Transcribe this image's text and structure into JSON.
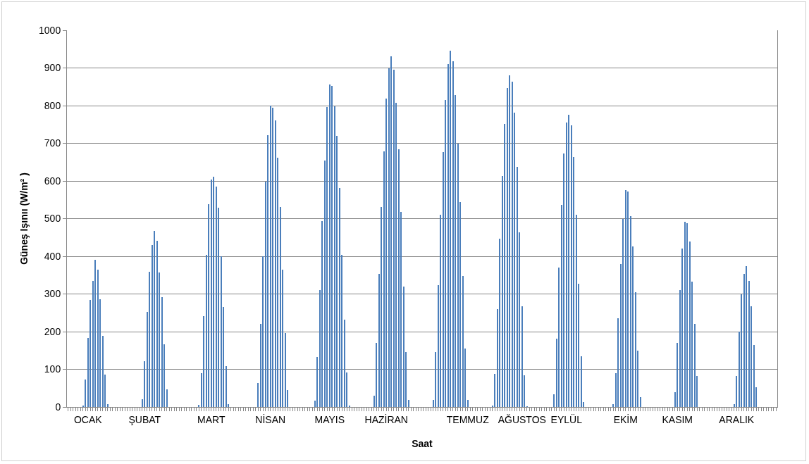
{
  "chart_data": {
    "type": "bar",
    "xlabel": "Saat",
    "ylabel": "Güneş Işınıı (W/m² )",
    "categories": [
      null,
      null,
      null,
      null,
      null,
      null,
      null,
      null,
      "OCAK",
      null,
      null,
      null,
      null,
      null,
      null,
      null,
      null,
      null,
      null,
      null,
      null,
      null,
      null,
      null,
      null,
      null,
      null,
      null,
      null,
      null,
      null,
      "ŞUBAT",
      null,
      null,
      null,
      null,
      null,
      null,
      null,
      null,
      null,
      null,
      null,
      null,
      null,
      null,
      null,
      null,
      null,
      null,
      null,
      null,
      null,
      null,
      null,
      null,
      null,
      null,
      "MART",
      null,
      null,
      null,
      null,
      null,
      null,
      null,
      null,
      null,
      null,
      null,
      null,
      null,
      null,
      null,
      null,
      null,
      null,
      null,
      null,
      null,
      null,
      null,
      "NİSAN",
      null,
      null,
      null,
      null,
      null,
      null,
      null,
      null,
      null,
      null,
      null,
      null,
      null,
      null,
      null,
      null,
      null,
      null,
      null,
      null,
      null,
      null,
      null,
      "MAYIS",
      null,
      null,
      null,
      null,
      null,
      null,
      null,
      null,
      null,
      null,
      null,
      null,
      null,
      null,
      null,
      null,
      null,
      null,
      null,
      null,
      null,
      null,
      "HAZİRAN",
      null,
      null,
      null,
      null,
      null,
      null,
      null,
      null,
      null,
      null,
      null,
      null,
      null,
      null,
      null,
      null,
      null,
      null,
      null,
      null,
      null,
      null,
      null,
      null,
      null,
      null,
      null,
      null,
      null,
      null,
      null,
      null,
      "TEMMUZ",
      null,
      null,
      null,
      null,
      null,
      null,
      null,
      null,
      null,
      null,
      null,
      null,
      null,
      null,
      null,
      null,
      null,
      null,
      null,
      null,
      null,
      "AĞUSTOS",
      null,
      null,
      null,
      null,
      null,
      null,
      null,
      null,
      null,
      null,
      null,
      null,
      null,
      null,
      null,
      null,
      null,
      "EYLÜL",
      null,
      null,
      null,
      null,
      null,
      null,
      null,
      null,
      null,
      null,
      null,
      null,
      null,
      null,
      null,
      null,
      null,
      null,
      null,
      null,
      null,
      null,
      null,
      "EKİM",
      null,
      null,
      null,
      null,
      null,
      null,
      null,
      null,
      null,
      null,
      null,
      null,
      null,
      null,
      null,
      null,
      null,
      null,
      null,
      null,
      "KASIM",
      null,
      null,
      null,
      null,
      null,
      null,
      null,
      null,
      null,
      null,
      null,
      null,
      null,
      null,
      null,
      null,
      null,
      null,
      null,
      null,
      null,
      null,
      null,
      "ARALIK",
      null,
      null,
      null,
      null,
      null,
      null,
      null,
      null,
      null,
      null,
      null,
      null,
      null,
      null,
      null,
      null
    ],
    "values": [
      0,
      0,
      0,
      0,
      0,
      0,
      4,
      72,
      183,
      284,
      334,
      390,
      364,
      286,
      189,
      86,
      8,
      0,
      0,
      0,
      0,
      0,
      0,
      0,
      0,
      0,
      0,
      0,
      0,
      0,
      21,
      121,
      252,
      359,
      430,
      467,
      442,
      357,
      291,
      166,
      47,
      0,
      0,
      0,
      0,
      0,
      0,
      0,
      0,
      0,
      0,
      0,
      0,
      6,
      90,
      242,
      403,
      539,
      603,
      612,
      585,
      529,
      400,
      265,
      109,
      8,
      0,
      0,
      0,
      0,
      0,
      0,
      0,
      0,
      0,
      0,
      0,
      63,
      221,
      400,
      598,
      721,
      800,
      794,
      761,
      662,
      530,
      365,
      197,
      44,
      0,
      0,
      0,
      0,
      0,
      0,
      0,
      0,
      0,
      0,
      17,
      133,
      310,
      494,
      655,
      797,
      857,
      852,
      798,
      719,
      581,
      403,
      232,
      91,
      4,
      0,
      0,
      0,
      0,
      0,
      0,
      0,
      0,
      0,
      30,
      170,
      353,
      530,
      679,
      819,
      900,
      931,
      896,
      807,
      684,
      518,
      319,
      146,
      18,
      0,
      0,
      0,
      0,
      0,
      0,
      0,
      0,
      0,
      19,
      145,
      324,
      511,
      676,
      815,
      911,
      946,
      918,
      828,
      699,
      544,
      347,
      155,
      19,
      0,
      0,
      0,
      0,
      0,
      0,
      0,
      0,
      0,
      3,
      87,
      260,
      446,
      614,
      751,
      847,
      881,
      864,
      782,
      638,
      463,
      267,
      85,
      2,
      0,
      0,
      0,
      0,
      0,
      0,
      0,
      0,
      0,
      0,
      33,
      182,
      370,
      537,
      672,
      755,
      775,
      748,
      664,
      510,
      327,
      134,
      13,
      0,
      0,
      0,
      0,
      0,
      0,
      0,
      0,
      0,
      0,
      0,
      7,
      90,
      235,
      379,
      500,
      576,
      572,
      506,
      426,
      305,
      150,
      27,
      0,
      0,
      0,
      0,
      0,
      0,
      0,
      0,
      0,
      0,
      0,
      0,
      0,
      40,
      170,
      310,
      421,
      491,
      487,
      440,
      332,
      221,
      82,
      0,
      0,
      0,
      0,
      0,
      0,
      0,
      0,
      0,
      0,
      0,
      0,
      0,
      0,
      7,
      82,
      200,
      300,
      353,
      374,
      334,
      267,
      164,
      52,
      0,
      0,
      0,
      0,
      0,
      0,
      0,
      0
    ],
    "color": "#4a7ebb",
    "ylim": [
      0,
      1000
    ],
    "yticks": [
      0,
      100,
      200,
      300,
      400,
      500,
      600,
      700,
      800,
      900,
      1000
    ],
    "grid": "y"
  }
}
